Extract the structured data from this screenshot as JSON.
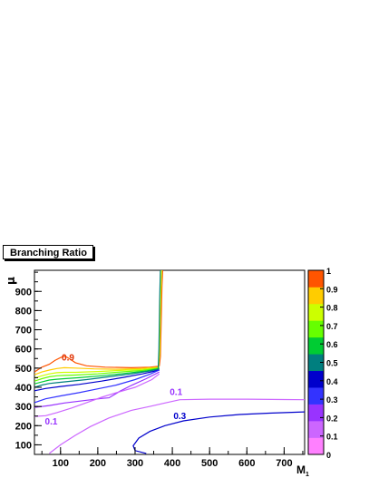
{
  "chart_data": {
    "type": "contour",
    "title": "Branching Ratio",
    "xlabel": "M",
    "xlabel_subscript": "1",
    "ylabel": "μ",
    "xlim": [
      30,
      755
    ],
    "ylim": [
      50,
      1010
    ],
    "x_ticks": [
      100,
      200,
      300,
      400,
      500,
      600,
      700
    ],
    "y_ticks": [
      100,
      200,
      300,
      400,
      500,
      600,
      700,
      800,
      900
    ],
    "colorbar": {
      "range": [
        0,
        1
      ],
      "ticks": [
        "0",
        "0.1",
        "0.2",
        "0.3",
        "0.4",
        "0.5",
        "0.6",
        "0.7",
        "0.8",
        "0.9",
        "1"
      ],
      "bands": [
        "#ff80ff",
        "#cc66ff",
        "#9933ff",
        "#3333ff",
        "#0000cc",
        "#007f7f",
        "#00cc33",
        "#66ff00",
        "#ccff00",
        "#ffcc00",
        "#ff5500"
      ]
    },
    "contour_labels": [
      {
        "text": "0.9",
        "x": 120,
        "y": 540,
        "color": "#e03000"
      },
      {
        "text": "0.1",
        "x": 410,
        "y": 360,
        "color": "#9933ff"
      },
      {
        "text": "0.1",
        "x": 75,
        "y": 205,
        "color": "#9933ff"
      },
      {
        "text": "0.3",
        "x": 420,
        "y": 235,
        "color": "#0000cc"
      }
    ],
    "contours": [
      {
        "level": 0.9,
        "color": "#ff5500",
        "points": [
          [
            30,
            480
          ],
          [
            50,
            505
          ],
          [
            70,
            520
          ],
          [
            85,
            540
          ],
          [
            100,
            555
          ],
          [
            112,
            562
          ],
          [
            125,
            548
          ],
          [
            140,
            528
          ],
          [
            170,
            512
          ],
          [
            220,
            505
          ],
          [
            290,
            502
          ],
          [
            340,
            505
          ],
          [
            365,
            510
          ]
        ]
      },
      {
        "level": 0.8,
        "color": "#ffcc00",
        "points": [
          [
            30,
            465
          ],
          [
            50,
            480
          ],
          [
            70,
            490
          ],
          [
            90,
            498
          ],
          [
            110,
            502
          ],
          [
            140,
            500
          ],
          [
            190,
            496
          ],
          [
            250,
            494
          ],
          [
            310,
            497
          ],
          [
            365,
            505
          ]
        ]
      },
      {
        "level": 0.7,
        "color": "#ccff00",
        "points": [
          [
            30,
            448
          ],
          [
            50,
            460
          ],
          [
            70,
            470
          ],
          [
            90,
            476
          ],
          [
            110,
            478
          ],
          [
            140,
            478
          ],
          [
            200,
            482
          ],
          [
            260,
            488
          ],
          [
            320,
            493
          ],
          [
            365,
            502
          ]
        ]
      },
      {
        "level": 0.6,
        "color": "#66ff00",
        "points": [
          [
            30,
            432
          ],
          [
            50,
            445
          ],
          [
            70,
            455
          ],
          [
            90,
            460
          ],
          [
            110,
            462
          ],
          [
            140,
            464
          ],
          [
            200,
            470
          ],
          [
            260,
            480
          ],
          [
            320,
            488
          ],
          [
            365,
            500
          ]
        ]
      },
      {
        "level": 0.5,
        "color": "#00cc33",
        "points": [
          [
            30,
            418
          ],
          [
            50,
            428
          ],
          [
            70,
            438
          ],
          [
            90,
            442
          ],
          [
            110,
            445
          ],
          [
            150,
            450
          ],
          [
            210,
            460
          ],
          [
            270,
            472
          ],
          [
            330,
            485
          ],
          [
            365,
            498
          ]
        ]
      },
      {
        "level": 0.4,
        "color": "#007f7f",
        "points": [
          [
            30,
            400
          ],
          [
            50,
            412
          ],
          [
            70,
            420
          ],
          [
            90,
            424
          ],
          [
            120,
            430
          ],
          [
            170,
            440
          ],
          [
            230,
            455
          ],
          [
            290,
            470
          ],
          [
            340,
            485
          ],
          [
            365,
            495
          ]
        ]
      },
      {
        "level": 0.3,
        "color": "#0000cc",
        "points": [
          [
            30,
            382
          ],
          [
            60,
            394
          ],
          [
            100,
            404
          ],
          [
            150,
            415
          ],
          [
            210,
            432
          ],
          [
            270,
            452
          ],
          [
            320,
            470
          ],
          [
            365,
            490
          ]
        ]
      },
      {
        "level": 0.2,
        "color": "#3333ff",
        "points": [
          [
            30,
            320
          ],
          [
            60,
            340
          ],
          [
            100,
            355
          ],
          [
            150,
            372
          ],
          [
            200,
            392
          ],
          [
            250,
            412
          ],
          [
            300,
            440
          ],
          [
            340,
            468
          ],
          [
            365,
            490
          ]
        ]
      },
      {
        "level": 0.15,
        "color": "#9933ff",
        "points": [
          [
            30,
            295
          ],
          [
            70,
            305
          ],
          [
            110,
            318
          ],
          [
            160,
            330
          ],
          [
            210,
            342
          ],
          [
            230,
            345
          ],
          [
            260,
            380
          ],
          [
            290,
            410
          ],
          [
            330,
            445
          ],
          [
            365,
            480
          ]
        ]
      },
      {
        "level": 0.1,
        "color": "#cc66ff",
        "points": [
          [
            30,
            248
          ],
          [
            60,
            252
          ],
          [
            90,
            268
          ],
          [
            130,
            292
          ],
          [
            170,
            320
          ],
          [
            210,
            348
          ],
          [
            250,
            372
          ],
          [
            300,
            400
          ],
          [
            345,
            440
          ],
          [
            365,
            470
          ]
        ]
      },
      {
        "level": 0.1,
        "color": "#cc66ff",
        "points": [
          [
            70,
            55
          ],
          [
            100,
            100
          ],
          [
            140,
            150
          ],
          [
            180,
            195
          ],
          [
            230,
            240
          ],
          [
            290,
            280
          ],
          [
            340,
            300
          ],
          [
            380,
            318
          ],
          [
            420,
            335
          ],
          [
            500,
            338
          ],
          [
            600,
            338
          ],
          [
            700,
            336
          ],
          [
            755,
            335
          ]
        ]
      },
      {
        "level": 0.3,
        "color": "#0000cc",
        "points": [
          [
            330,
            55
          ],
          [
            300,
            70
          ],
          [
            295,
            95
          ],
          [
            310,
            135
          ],
          [
            340,
            170
          ],
          [
            380,
            200
          ],
          [
            430,
            225
          ],
          [
            500,
            245
          ],
          [
            580,
            258
          ],
          [
            660,
            265
          ],
          [
            755,
            272
          ]
        ]
      },
      {
        "level": 0.9,
        "color": "#ff5500",
        "points": [
          [
            365,
            510
          ],
          [
            368,
            560
          ],
          [
            369,
            650
          ],
          [
            370,
            740
          ],
          [
            371,
            830
          ],
          [
            372,
            920
          ],
          [
            374,
            1010
          ]
        ]
      },
      {
        "level": 0.7,
        "color": "#ccff00",
        "points": [
          [
            363,
            505
          ],
          [
            366,
            580
          ],
          [
            367,
            680
          ],
          [
            368,
            780
          ],
          [
            369,
            880
          ],
          [
            371,
            1010
          ]
        ]
      },
      {
        "level": 0.5,
        "color": "#007f7f",
        "points": [
          [
            362,
            500
          ],
          [
            364,
            600
          ],
          [
            365,
            720
          ],
          [
            366,
            850
          ],
          [
            368,
            1010
          ]
        ]
      }
    ]
  }
}
